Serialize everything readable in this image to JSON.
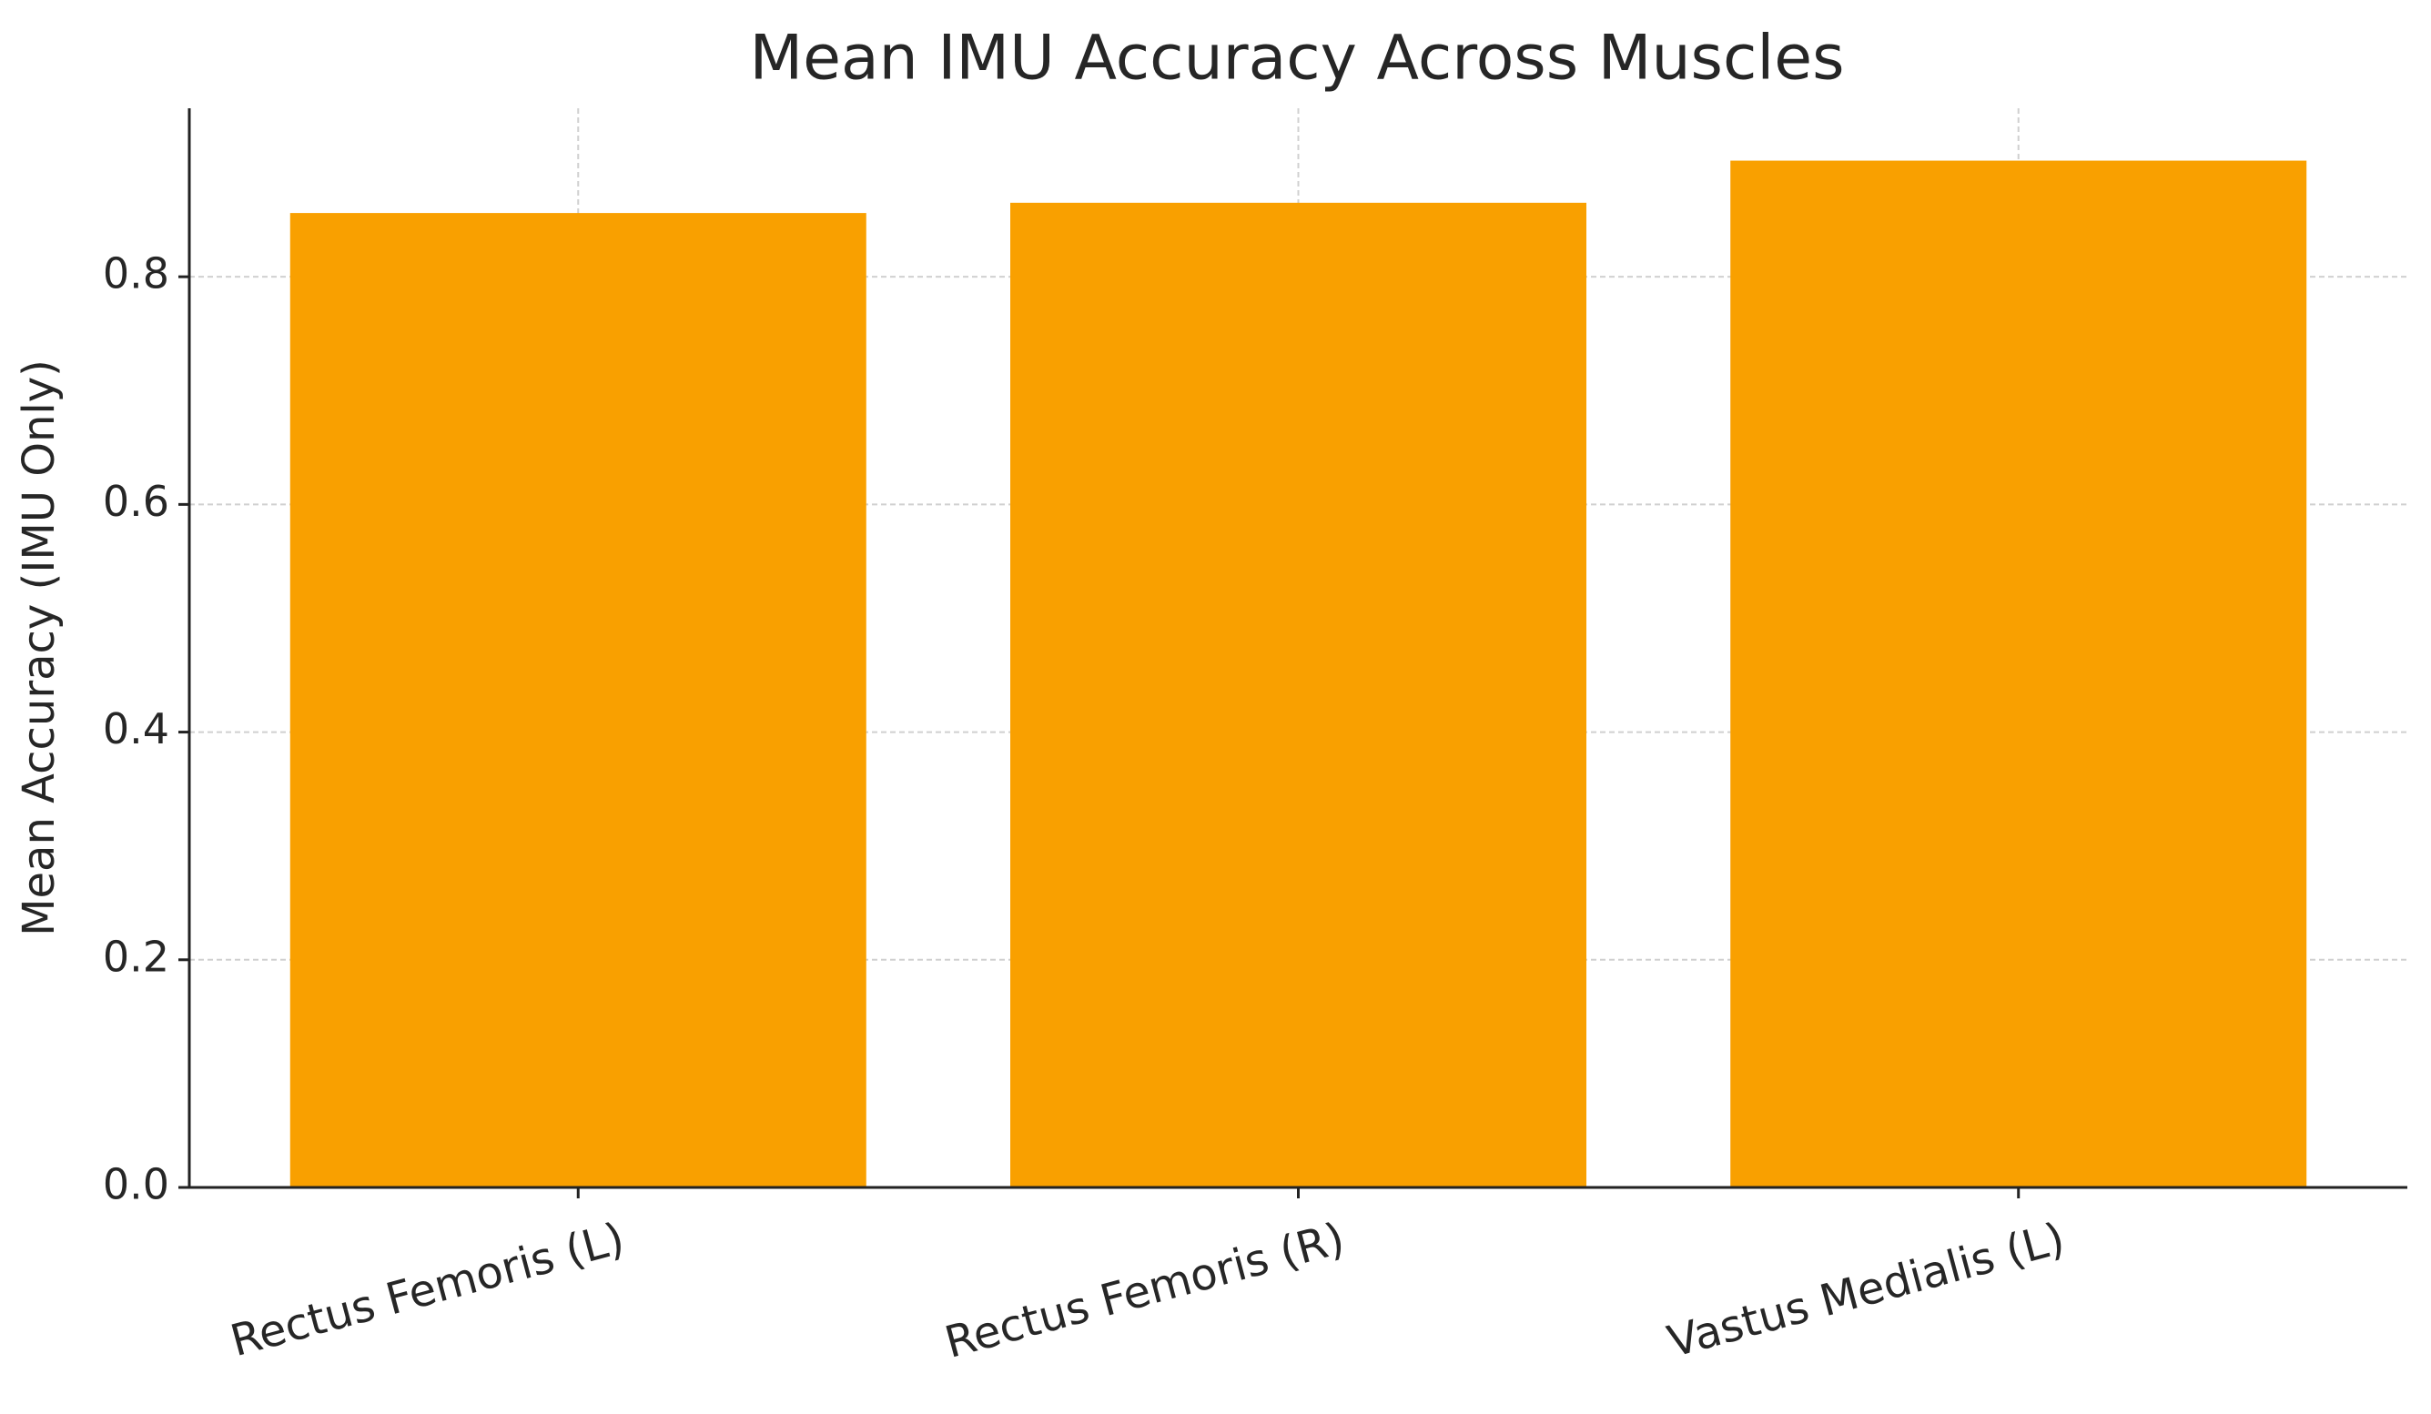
{
  "chart_data": {
    "type": "bar",
    "title": "Mean IMU Accuracy Across Muscles",
    "y_label": "Mean Accuracy (IMU Only)",
    "categories": [
      "Rectus Femoris (L)",
      "Rectus Femoris (R)",
      "Vastus Medialis (L)"
    ],
    "values": [
      0.856,
      0.865,
      0.902
    ],
    "color": "#f9a000",
    "ylim": [
      0,
      0.948
    ],
    "yticks": [
      {
        "value": 0,
        "label": "0.0"
      },
      0.2,
      0.4,
      0.6,
      0.8
    ],
    "grid": true
  }
}
